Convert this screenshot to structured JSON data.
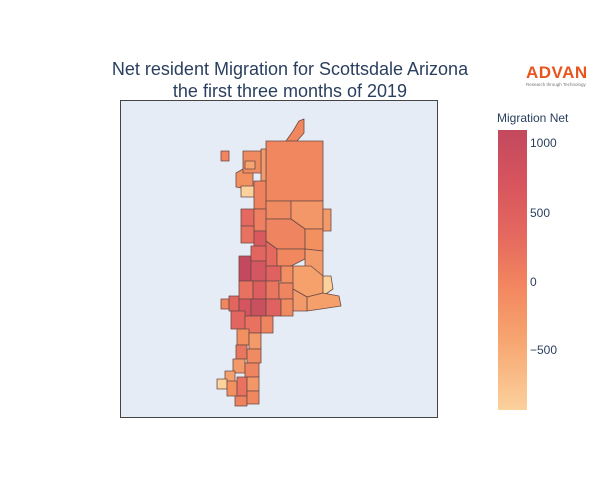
{
  "title": {
    "line1": "Net resident Migration for Scottsdale Arizona",
    "line2": "the first three months of 2019"
  },
  "logo": {
    "word": "ADVAN",
    "tagline": "Research through Technology"
  },
  "colorbar": {
    "title": "Migration Net",
    "ticks": [
      "1000",
      "500",
      "0",
      "−500"
    ],
    "range": [
      -950,
      1100
    ],
    "colorscale": [
      "#fbd19c",
      "#f7a570",
      "#f2855f",
      "#e5695f",
      "#d6545e",
      "#c3495e"
    ]
  },
  "colors": {
    "map_background": "#e5ecf6",
    "tract_border": "#6b4a45",
    "text": "#2a3f5f",
    "brand": "#e8541e"
  }
}
